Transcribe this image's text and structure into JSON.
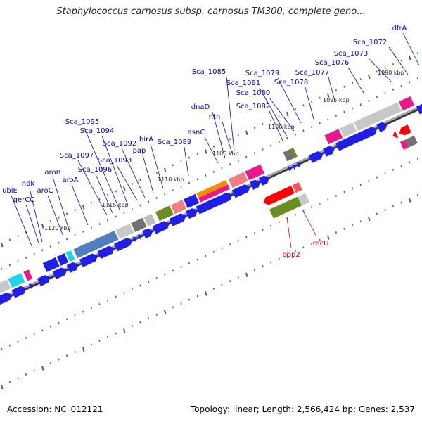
{
  "title": "Staphylococcus carnosus subsp. carnosus TM300, complete geno...",
  "footer": {
    "accession": "Accession: NC_012121",
    "summary": "Topology: linear; Length: 2,566,424 bp; Genes: 2,537"
  },
  "colors": {
    "forward_cds": "#1f1fe6",
    "reverse_cds": "#ff0000",
    "forward_label": "#0000c8",
    "reverse_label": "#d40000",
    "tick": "#2e7d32",
    "axis": "#7a7a7a"
  },
  "scale_labels": [
    "1090 kbp",
    "1095 kbp",
    "1100 kbp",
    "1105 kbp",
    "1110 kbp",
    "1115 kbp",
    "1120 kbp"
  ],
  "forward_labels": [
    "dfrA",
    "Sca_1072",
    "Sca_1073",
    "Sca_1076",
    "Sca_1077",
    "Sca_1078",
    "Sca_1079",
    "Sca_1080",
    "Sca_1081",
    "Sca_1082",
    "Sca_1085",
    "dnaD",
    "nth",
    "asnC",
    "Sca_1089",
    "birA",
    "pap",
    "Sca_1092",
    "Sca_1093",
    "Sca_1094",
    "Sca_1095",
    "Sca_1096",
    "Sca_1097",
    "aroA",
    "aroB",
    "aroC",
    "ndk",
    "ubiE",
    "gerCC"
  ],
  "reverse_labels": [
    "pbp2",
    "recU"
  ]
}
